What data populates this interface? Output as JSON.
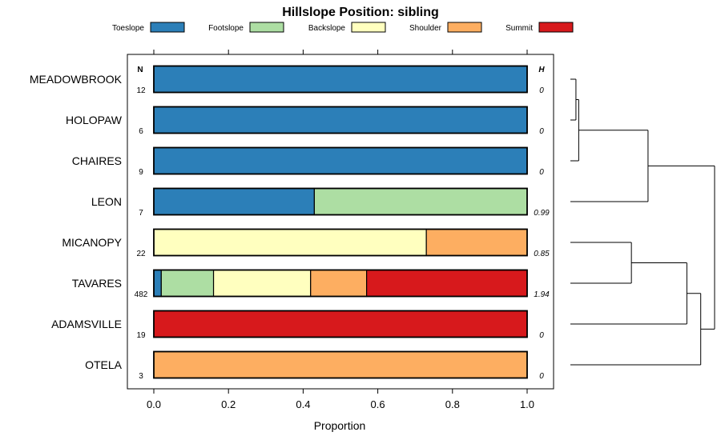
{
  "chart_data": {
    "type": "bar",
    "stacked": true,
    "orientation": "horizontal",
    "title": "Hillslope Position: sibling",
    "xlabel": "Proportion",
    "ylabel": "",
    "xlim": [
      0,
      1
    ],
    "x_ticks": [
      "0.0",
      "0.2",
      "0.4",
      "0.6",
      "0.8",
      "1.0"
    ],
    "legend_position": "top",
    "n_header": "N",
    "h_header": "H",
    "series": [
      {
        "name": "Toeslope",
        "color": "#2c7fb8"
      },
      {
        "name": "Footslope",
        "color": "#addea3"
      },
      {
        "name": "Backslope",
        "color": "#ffffbf"
      },
      {
        "name": "Shoulder",
        "color": "#fdae61"
      },
      {
        "name": "Summit",
        "color": "#d7191c"
      }
    ],
    "categories": [
      "MEADOWBROOK",
      "HOLOPAW",
      "CHAIRES",
      "LEON",
      "MICANOPY",
      "TAVARES",
      "ADAMSVILLE",
      "OTELA"
    ],
    "values": [
      [
        1,
        0,
        0,
        0,
        0
      ],
      [
        1,
        0,
        0,
        0,
        0
      ],
      [
        1,
        0,
        0,
        0,
        0
      ],
      [
        0.43,
        0.57,
        0,
        0,
        0
      ],
      [
        0,
        0,
        0.73,
        0.27,
        0
      ],
      [
        0.02,
        0.14,
        0.26,
        0.15,
        0.43
      ],
      [
        0,
        0,
        0,
        0,
        1
      ],
      [
        0,
        0,
        0,
        1,
        0
      ]
    ],
    "n": [
      "12",
      "6",
      "9",
      "7",
      "22",
      "482",
      "19",
      "3"
    ],
    "h": [
      "0",
      "0",
      "0",
      "0.99",
      "0.85",
      "1.94",
      "0",
      "0"
    ],
    "dendrogram": {
      "leaf_order": [
        "MEADOWBROOK",
        "HOLOPAW",
        "CHAIRES",
        "LEON",
        "MICANOPY",
        "TAVARES",
        "ADAMSVILLE",
        "OTELA"
      ],
      "merges": [
        {
          "a": 0,
          "b": 1,
          "height": 0.02
        },
        {
          "a": -1,
          "b": 2,
          "height": 0.03
        },
        {
          "a": -2,
          "b": 3,
          "height": 0.28
        },
        {
          "a": 4,
          "b": 5,
          "height": 0.22
        },
        {
          "a": -4,
          "b": 6,
          "height": 0.42
        },
        {
          "a": -5,
          "b": 7,
          "height": 0.47
        },
        {
          "a": -3,
          "b": -6,
          "height": 0.52
        }
      ]
    }
  }
}
